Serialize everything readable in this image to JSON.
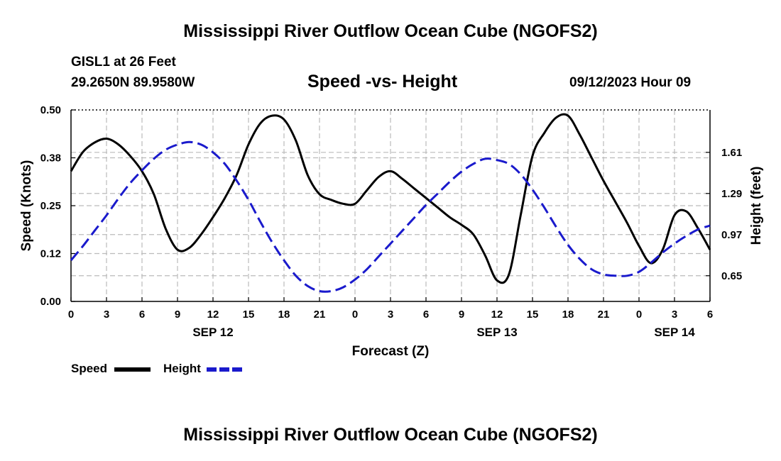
{
  "header": {
    "title": "Mississippi River Outflow Ocean Cube (NGOFS2)",
    "station": "GISL1 at 26 Feet",
    "coordinates": "29.2650N  89.9580W",
    "subtitle": "Speed -vs- Height",
    "datetime": "09/12/2023 Hour 09"
  },
  "footer": {
    "title": "Mississippi River Outflow Ocean Cube (NGOFS2)"
  },
  "legend": {
    "speed_label": "Speed",
    "height_label": "Height"
  },
  "colors": {
    "speed": "#000000",
    "height": "#1a1acc",
    "grid": "#bbbbbb"
  },
  "chart_data": {
    "type": "line",
    "title": "Speed -vs- Height",
    "xlabel": "Forecast (Z)",
    "ylabel_left": "Speed (Knots)",
    "ylabel_right": "Height (feet)",
    "xlim": [
      0,
      54
    ],
    "x_ticks": [
      0,
      3,
      6,
      9,
      12,
      15,
      18,
      21,
      24,
      27,
      30,
      33,
      36,
      39,
      42,
      45,
      48,
      51,
      54
    ],
    "x_tick_labels": [
      "0",
      "3",
      "6",
      "9",
      "12",
      "15",
      "18",
      "21",
      "0",
      "3",
      "6",
      "9",
      "12",
      "15",
      "18",
      "21",
      "0",
      "3",
      "6"
    ],
    "date_labels": [
      {
        "x": 12,
        "label": "SEP 12"
      },
      {
        "x": 36,
        "label": "SEP 13"
      },
      {
        "x": 51,
        "label": "SEP 14"
      }
    ],
    "ylim_left": [
      0,
      0.5
    ],
    "y_ticks_left": [
      0.0,
      0.125,
      0.25,
      0.375,
      0.5
    ],
    "y_tick_labels_left": [
      "0.00",
      "0.12",
      "0.25",
      "0.38",
      "0.50"
    ],
    "ylim_right": [
      0.45,
      1.94
    ],
    "y_ticks_right": [
      0.65,
      0.97,
      1.29,
      1.61
    ],
    "y_tick_labels_right": [
      "0.65",
      "0.97",
      "1.29",
      "1.61"
    ],
    "series": [
      {
        "name": "Speed",
        "axis": "left",
        "style": "solid",
        "x": [
          0,
          1,
          2,
          3,
          4,
          5,
          6,
          7,
          8,
          9,
          10,
          11,
          12,
          13,
          14,
          15,
          16,
          17,
          18,
          19,
          20,
          21,
          22,
          23,
          24,
          25,
          26,
          27,
          28,
          29,
          30,
          31,
          32,
          33,
          34,
          35,
          36,
          37,
          38,
          39,
          40,
          41,
          42,
          43,
          44,
          45,
          46,
          47,
          48,
          49,
          50,
          51,
          52,
          53,
          54
        ],
        "values": [
          0.34,
          0.39,
          0.415,
          0.425,
          0.41,
          0.38,
          0.34,
          0.28,
          0.19,
          0.135,
          0.14,
          0.175,
          0.22,
          0.27,
          0.33,
          0.41,
          0.465,
          0.485,
          0.475,
          0.42,
          0.33,
          0.28,
          0.265,
          0.255,
          0.255,
          0.29,
          0.325,
          0.34,
          0.32,
          0.295,
          0.27,
          0.245,
          0.22,
          0.2,
          0.175,
          0.12,
          0.055,
          0.07,
          0.225,
          0.38,
          0.44,
          0.48,
          0.485,
          0.435,
          0.375,
          0.315,
          0.26,
          0.205,
          0.145,
          0.1,
          0.135,
          0.225,
          0.235,
          0.19,
          0.135
        ]
      },
      {
        "name": "Height",
        "axis": "right",
        "style": "dashed",
        "x": [
          0,
          1,
          2,
          3,
          4,
          5,
          6,
          7,
          8,
          9,
          10,
          11,
          12,
          13,
          14,
          15,
          16,
          17,
          18,
          19,
          20,
          21,
          22,
          23,
          24,
          25,
          26,
          27,
          28,
          29,
          30,
          31,
          32,
          33,
          34,
          35,
          36,
          37,
          38,
          39,
          40,
          41,
          42,
          43,
          44,
          45,
          46,
          47,
          48,
          49,
          50,
          51,
          52,
          53,
          54
        ],
        "values": [
          0.77,
          0.88,
          1.0,
          1.12,
          1.25,
          1.37,
          1.47,
          1.56,
          1.63,
          1.67,
          1.69,
          1.67,
          1.61,
          1.52,
          1.39,
          1.24,
          1.07,
          0.91,
          0.77,
          0.65,
          0.57,
          0.53,
          0.53,
          0.56,
          0.62,
          0.7,
          0.8,
          0.9,
          1.0,
          1.1,
          1.2,
          1.29,
          1.38,
          1.46,
          1.52,
          1.56,
          1.55,
          1.52,
          1.44,
          1.32,
          1.18,
          1.03,
          0.89,
          0.78,
          0.7,
          0.66,
          0.65,
          0.65,
          0.68,
          0.75,
          0.83,
          0.9,
          0.96,
          1.01,
          1.04
        ]
      }
    ]
  }
}
